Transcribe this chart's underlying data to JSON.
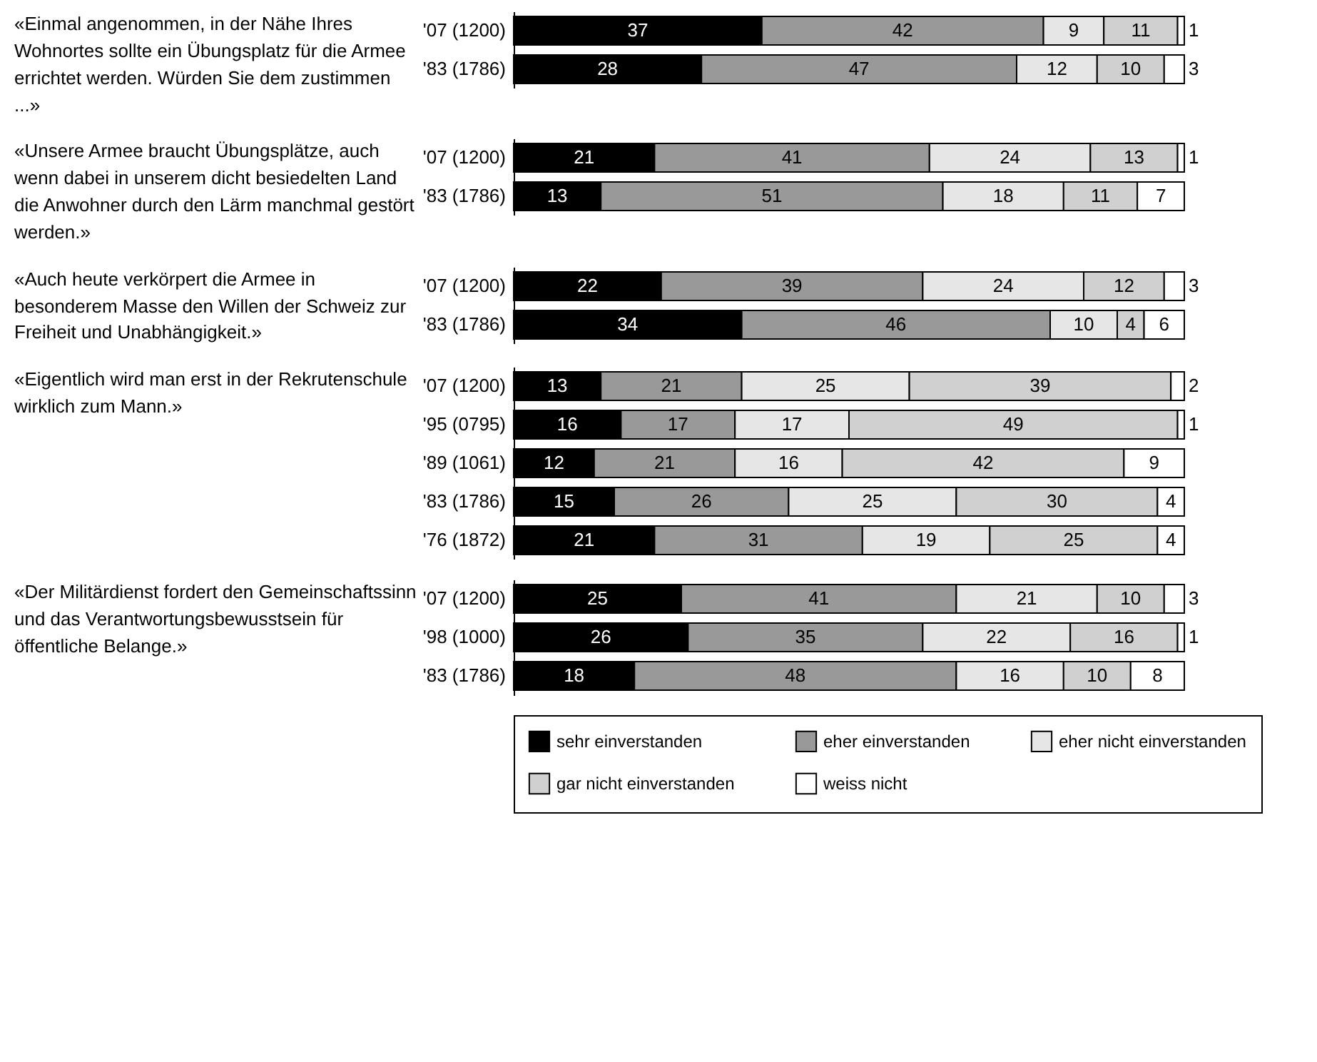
{
  "chart_data": [
    {
      "type": "bar",
      "orientation": "horizontal",
      "stacked": true,
      "data_labels": true,
      "title": "«Einmal angenommen, in der Nähe Ihres Wohnortes sollte ein Übungsplatz für die Armee errichtet werden. Würden Sie dem zustimmen ...»",
      "categories": [
        "'07 (1200)",
        "'83 (1786)"
      ],
      "series": [
        {
          "color": "#000000",
          "values": [
            37,
            28
          ]
        },
        {
          "color": "#999999",
          "values": [
            42,
            47
          ]
        },
        {
          "color": "#e6e6e6",
          "values": [
            9,
            12
          ]
        },
        {
          "color": "#d0d0d0",
          "values": [
            11,
            10
          ]
        },
        {
          "color": "#ffffff",
          "values": [
            1,
            3
          ]
        }
      ]
    },
    {
      "type": "bar",
      "orientation": "horizontal",
      "stacked": true,
      "data_labels": true,
      "title": "«Unsere Armee braucht Übungsplätze, auch wenn dabei in unserem dicht besiedelten Land die Anwohner durch den Lärm manchmal gestört werden.»",
      "categories": [
        "'07 (1200)",
        "'83 (1786)"
      ],
      "series": [
        {
          "color": "#000000",
          "values": [
            21,
            13
          ]
        },
        {
          "color": "#999999",
          "values": [
            41,
            51
          ]
        },
        {
          "color": "#e6e6e6",
          "values": [
            24,
            18
          ]
        },
        {
          "color": "#d0d0d0",
          "values": [
            13,
            11
          ]
        },
        {
          "color": "#ffffff",
          "values": [
            1,
            7
          ]
        }
      ]
    },
    {
      "type": "bar",
      "orientation": "horizontal",
      "stacked": true,
      "data_labels": true,
      "title": "«Auch heute verkörpert die Armee in besonderem Masse den Willen der Schweiz zur Freiheit und Unabhängigkeit.»",
      "categories": [
        "'07 (1200)",
        "'83 (1786)"
      ],
      "series": [
        {
          "color": "#000000",
          "values": [
            22,
            34
          ]
        },
        {
          "color": "#999999",
          "values": [
            39,
            46
          ]
        },
        {
          "color": "#e6e6e6",
          "values": [
            24,
            10
          ]
        },
        {
          "color": "#d0d0d0",
          "values": [
            12,
            4
          ]
        },
        {
          "color": "#ffffff",
          "values": [
            3,
            6
          ]
        }
      ]
    },
    {
      "type": "bar",
      "orientation": "horizontal",
      "stacked": true,
      "data_labels": true,
      "title": "«Eigentlich wird man erst in der Rekrutenschule wirklich zum Mann.»",
      "categories": [
        "'07 (1200)",
        "'95 (0795)",
        "'89 (1061)",
        "'83 (1786)",
        "'76 (1872)"
      ],
      "series": [
        {
          "color": "#000000",
          "values": [
            13,
            16,
            12,
            15,
            21
          ]
        },
        {
          "color": "#999999",
          "values": [
            21,
            17,
            21,
            26,
            31
          ]
        },
        {
          "color": "#e6e6e6",
          "values": [
            25,
            17,
            16,
            25,
            19
          ]
        },
        {
          "color": "#d0d0d0",
          "values": [
            39,
            49,
            42,
            30,
            25
          ]
        },
        {
          "color": "#ffffff",
          "values": [
            2,
            1,
            9,
            4,
            4
          ]
        }
      ]
    },
    {
      "type": "bar",
      "orientation": "horizontal",
      "stacked": true,
      "data_labels": true,
      "legend": "bottom",
      "title": "«Der Militärdienst fordert den Gemeinschaftssinn und das Verantwortungsbewusstsein für öffentliche Belange.»",
      "categories": [
        "'07 (1200)",
        "'98 (1000)",
        "'83 (1786)"
      ],
      "series": [
        {
          "name": "sehr einverstanden",
          "color": "#000000",
          "values": [
            25,
            26,
            18
          ]
        },
        {
          "name": "eher einverstanden",
          "color": "#999999",
          "values": [
            41,
            35,
            48
          ]
        },
        {
          "name": "eher nicht einverstanden",
          "color": "#e6e6e6",
          "values": [
            21,
            22,
            16
          ]
        },
        {
          "name": "gar nicht einverstanden",
          "color": "#d0d0d0",
          "values": [
            10,
            16,
            10
          ]
        },
        {
          "name": "weiss nicht",
          "color": "#ffffff",
          "values": [
            3,
            1,
            8
          ]
        }
      ]
    }
  ]
}
